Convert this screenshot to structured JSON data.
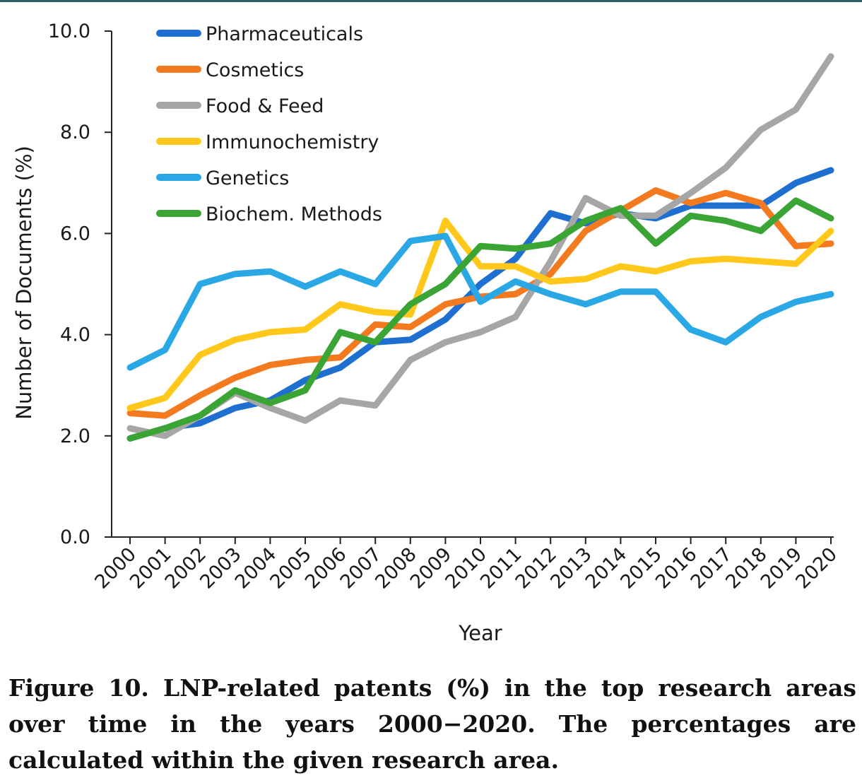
{
  "chart_data": {
    "type": "line",
    "xlabel": "Year",
    "ylabel": "Number of Documents (%)",
    "ylim": [
      0,
      10
    ],
    "yticks": [
      "0.0",
      "2.0",
      "4.0",
      "6.0",
      "8.0",
      "10.0"
    ],
    "legend_position": "top-left",
    "x": [
      "2000",
      "2001",
      "2002",
      "2003",
      "2004",
      "2005",
      "2006",
      "2007",
      "2008",
      "2009",
      "2010",
      "2011",
      "2012",
      "2013",
      "2014",
      "2015",
      "2016",
      "2017",
      "2018",
      "2019",
      "2020"
    ],
    "series": [
      {
        "name": "Pharmaceuticals",
        "color": "#1f6fd1",
        "values": [
          1.95,
          2.15,
          2.25,
          2.55,
          2.7,
          3.1,
          3.35,
          3.85,
          3.9,
          4.3,
          5.0,
          5.5,
          6.4,
          6.2,
          6.4,
          6.3,
          6.55,
          6.55,
          6.55,
          7.0,
          7.25
        ]
      },
      {
        "name": "Cosmetics",
        "color": "#f47a20",
        "values": [
          2.45,
          2.4,
          2.8,
          3.15,
          3.4,
          3.5,
          3.55,
          4.2,
          4.15,
          4.6,
          4.75,
          4.8,
          5.2,
          6.05,
          6.45,
          6.85,
          6.6,
          6.8,
          6.6,
          5.75,
          5.8
        ]
      },
      {
        "name": "Food & Feed",
        "color": "#a6a6a6",
        "values": [
          2.15,
          2.0,
          2.4,
          2.85,
          2.55,
          2.3,
          2.7,
          2.6,
          3.5,
          3.85,
          4.05,
          4.35,
          5.45,
          6.7,
          6.35,
          6.35,
          6.8,
          7.3,
          8.05,
          8.45,
          9.5
        ]
      },
      {
        "name": "Immunochemistry",
        "color": "#ffc81a",
        "values": [
          2.55,
          2.75,
          3.6,
          3.9,
          4.05,
          4.1,
          4.6,
          4.45,
          4.4,
          6.25,
          5.35,
          5.35,
          5.05,
          5.1,
          5.35,
          5.25,
          5.45,
          5.5,
          5.45,
          5.4,
          6.05
        ]
      },
      {
        "name": "Genetics",
        "color": "#2aa8e6",
        "values": [
          3.35,
          3.7,
          5.0,
          5.2,
          5.25,
          4.95,
          5.25,
          5.0,
          5.85,
          5.95,
          4.65,
          5.05,
          4.8,
          4.6,
          4.85,
          4.85,
          4.1,
          3.85,
          4.35,
          4.65,
          4.8
        ]
      },
      {
        "name": "Biochem. Methods",
        "color": "#3aa535",
        "values": [
          1.95,
          2.15,
          2.4,
          2.9,
          2.65,
          2.9,
          4.05,
          3.85,
          4.6,
          5.0,
          5.75,
          5.7,
          5.8,
          6.25,
          6.5,
          5.8,
          6.35,
          6.25,
          6.05,
          6.65,
          6.3
        ]
      }
    ]
  },
  "caption": "Figure 10. LNP-related patents (%) in the top research areas over time in the years 2000−2020. The percentages are calculated within the given research area."
}
